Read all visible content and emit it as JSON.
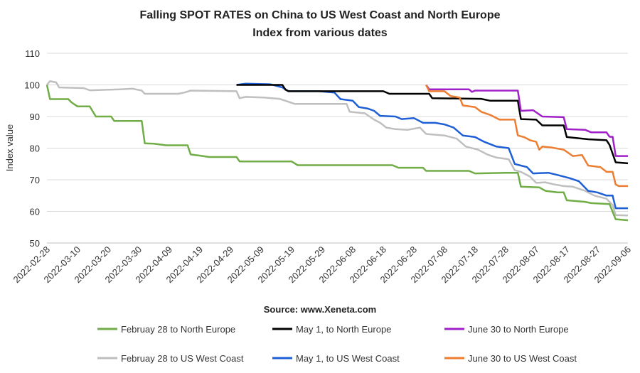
{
  "chart_data": {
    "type": "line",
    "title": "Falling SPOT RATES on China to US West Coast and North Europe",
    "subtitle": "Index from various dates",
    "ylabel": "Index value",
    "ylim": [
      50,
      110
    ],
    "yticks": [
      50,
      60,
      70,
      80,
      90,
      100,
      110
    ],
    "xlim": [
      "2022-02-28",
      "2022-09-06"
    ],
    "xticks": [
      "2022-02-28",
      "2022-03-10",
      "2022-03-20",
      "2022-03-30",
      "2022-04-09",
      "2022-04-19",
      "2022-04-29",
      "2022-05-09",
      "2022-05-19",
      "2022-05-29",
      "2022-06-08",
      "2022-06-18",
      "2022-06-28",
      "2022-07-08",
      "2022-07-18",
      "2022-07-28",
      "2022-08-07",
      "2022-08-17",
      "2022-08-27",
      "2022-09-06"
    ],
    "grid": "horizontal",
    "legend_position": "bottom",
    "source": "Source: www.Xeneta.com",
    "series": [
      {
        "name": "Februay 28 to US West Coast",
        "color": "#bfbfbf",
        "points": [
          [
            "2022-02-28",
            100
          ],
          [
            "2022-03-01",
            101.2
          ],
          [
            "2022-03-02",
            101
          ],
          [
            "2022-03-03",
            100.8
          ],
          [
            "2022-03-04",
            99.2
          ],
          [
            "2022-03-12",
            99
          ],
          [
            "2022-03-14",
            98.3
          ],
          [
            "2022-03-24",
            98.6
          ],
          [
            "2022-03-28",
            98.8
          ],
          [
            "2022-03-31",
            98.2
          ],
          [
            "2022-04-01",
            97.2
          ],
          [
            "2022-04-12",
            97.2
          ],
          [
            "2022-04-14",
            97.6
          ],
          [
            "2022-04-16",
            98.2
          ],
          [
            "2022-05-01",
            98
          ],
          [
            "2022-05-02",
            95.8
          ],
          [
            "2022-05-04",
            96.2
          ],
          [
            "2022-05-10",
            96
          ],
          [
            "2022-05-15",
            95.6
          ],
          [
            "2022-05-17",
            95
          ],
          [
            "2022-05-20",
            94
          ],
          [
            "2022-06-06",
            94
          ],
          [
            "2022-06-07",
            91.5
          ],
          [
            "2022-06-12",
            91
          ],
          [
            "2022-06-15",
            89
          ],
          [
            "2022-06-17",
            88
          ],
          [
            "2022-06-19",
            86.5
          ],
          [
            "2022-06-22",
            86
          ],
          [
            "2022-06-26",
            85.8
          ],
          [
            "2022-06-30",
            86.5
          ],
          [
            "2022-07-02",
            84.5
          ],
          [
            "2022-07-08",
            84
          ],
          [
            "2022-07-12",
            83
          ],
          [
            "2022-07-15",
            80.5
          ],
          [
            "2022-07-19",
            79.5
          ],
          [
            "2022-07-22",
            78
          ],
          [
            "2022-07-25",
            77
          ],
          [
            "2022-07-29",
            76.5
          ],
          [
            "2022-07-31",
            73
          ],
          [
            "2022-08-02",
            72.5
          ],
          [
            "2022-08-05",
            71
          ],
          [
            "2022-08-07",
            69
          ],
          [
            "2022-08-10",
            69.2
          ],
          [
            "2022-08-13",
            68.5
          ],
          [
            "2022-08-16",
            68
          ],
          [
            "2022-08-19",
            67.8
          ],
          [
            "2022-08-23",
            66.5
          ],
          [
            "2022-08-26",
            65
          ],
          [
            "2022-08-30",
            64
          ],
          [
            "2022-09-01",
            62
          ],
          [
            "2022-09-02",
            58.8
          ],
          [
            "2022-09-06",
            58.7
          ]
        ]
      },
      {
        "name": "May 1, to US West Coast",
        "color": "#1f5fd6",
        "points": [
          [
            "2022-05-01",
            100
          ],
          [
            "2022-05-04",
            100.4
          ],
          [
            "2022-05-12",
            100.2
          ],
          [
            "2022-05-16",
            99.2
          ],
          [
            "2022-05-18",
            98
          ],
          [
            "2022-05-28",
            98
          ],
          [
            "2022-06-02",
            97.6
          ],
          [
            "2022-06-04",
            95.5
          ],
          [
            "2022-06-08",
            95
          ],
          [
            "2022-06-10",
            93
          ],
          [
            "2022-06-13",
            92.5
          ],
          [
            "2022-06-15",
            91.8
          ],
          [
            "2022-06-17",
            90.2
          ],
          [
            "2022-06-22",
            90
          ],
          [
            "2022-06-24",
            89.2
          ],
          [
            "2022-06-28",
            89.5
          ],
          [
            "2022-07-01",
            88
          ],
          [
            "2022-07-05",
            88
          ],
          [
            "2022-07-08",
            87.5
          ],
          [
            "2022-07-11",
            86.5
          ],
          [
            "2022-07-14",
            84
          ],
          [
            "2022-07-18",
            83.5
          ],
          [
            "2022-07-21",
            82
          ],
          [
            "2022-07-25",
            80.5
          ],
          [
            "2022-07-29",
            80
          ],
          [
            "2022-07-31",
            75
          ],
          [
            "2022-08-02",
            74.5
          ],
          [
            "2022-08-04",
            74
          ],
          [
            "2022-08-06",
            72
          ],
          [
            "2022-08-11",
            72.2
          ],
          [
            "2022-08-14",
            71.5
          ],
          [
            "2022-08-18",
            70.5
          ],
          [
            "2022-08-21",
            69.5
          ],
          [
            "2022-08-24",
            66.5
          ],
          [
            "2022-08-27",
            66
          ],
          [
            "2022-08-30",
            65
          ],
          [
            "2022-09-01",
            65
          ],
          [
            "2022-09-02",
            61
          ],
          [
            "2022-09-06",
            61
          ]
        ]
      },
      {
        "name": "Februay 28 to North Europe",
        "color": "#70ad47",
        "points": [
          [
            "2022-02-28",
            100
          ],
          [
            "2022-03-01",
            95.5
          ],
          [
            "2022-03-07",
            95.5
          ],
          [
            "2022-03-08",
            94.5
          ],
          [
            "2022-03-10",
            93.2
          ],
          [
            "2022-03-14",
            93.2
          ],
          [
            "2022-03-16",
            90
          ],
          [
            "2022-03-21",
            90
          ],
          [
            "2022-03-22",
            88.6
          ],
          [
            "2022-03-31",
            88.6
          ],
          [
            "2022-04-01",
            81.5
          ],
          [
            "2022-04-04",
            81.4
          ],
          [
            "2022-04-08",
            80.9
          ],
          [
            "2022-04-15",
            80.9
          ],
          [
            "2022-04-16",
            78
          ],
          [
            "2022-04-20",
            77.5
          ],
          [
            "2022-04-22",
            77.2
          ],
          [
            "2022-05-01",
            77.2
          ],
          [
            "2022-05-02",
            75.8
          ],
          [
            "2022-05-19",
            75.8
          ],
          [
            "2022-05-21",
            74.6
          ],
          [
            "2022-06-21",
            74.6
          ],
          [
            "2022-06-23",
            73.8
          ],
          [
            "2022-07-01",
            73.8
          ],
          [
            "2022-07-02",
            72.8
          ],
          [
            "2022-07-16",
            72.8
          ],
          [
            "2022-07-18",
            72
          ],
          [
            "2022-07-28",
            72.2
          ],
          [
            "2022-08-01",
            72.2
          ],
          [
            "2022-08-02",
            67.8
          ],
          [
            "2022-08-08",
            67.6
          ],
          [
            "2022-08-10",
            66.5
          ],
          [
            "2022-08-14",
            66
          ],
          [
            "2022-08-16",
            66
          ],
          [
            "2022-08-17",
            63.5
          ],
          [
            "2022-08-23",
            63
          ],
          [
            "2022-08-25",
            62.6
          ],
          [
            "2022-08-31",
            62.3
          ],
          [
            "2022-09-02",
            57.5
          ],
          [
            "2022-09-06",
            57.2
          ]
        ]
      },
      {
        "name": "May 1, to North Europe",
        "color": "#000000",
        "points": [
          [
            "2022-05-01",
            100
          ],
          [
            "2022-05-16",
            100
          ],
          [
            "2022-05-17",
            98.5
          ],
          [
            "2022-05-18",
            98
          ],
          [
            "2022-06-18",
            98
          ],
          [
            "2022-06-20",
            97.2
          ],
          [
            "2022-07-03",
            97.2
          ],
          [
            "2022-07-04",
            95.8
          ],
          [
            "2022-07-20",
            95.6
          ],
          [
            "2022-07-23",
            95
          ],
          [
            "2022-08-01",
            95
          ],
          [
            "2022-08-02",
            89.2
          ],
          [
            "2022-08-07",
            89
          ],
          [
            "2022-08-09",
            87.2
          ],
          [
            "2022-08-16",
            87.2
          ],
          [
            "2022-08-17",
            83.5
          ],
          [
            "2022-08-24",
            82.8
          ],
          [
            "2022-08-30",
            82.5
          ],
          [
            "2022-08-31",
            81
          ],
          [
            "2022-09-02",
            75.5
          ],
          [
            "2022-09-06",
            75.2
          ]
        ]
      },
      {
        "name": "June 30 to North Europe",
        "color": "#a020c8",
        "points": [
          [
            "2022-07-02",
            100
          ],
          [
            "2022-07-03",
            98.6
          ],
          [
            "2022-07-16",
            98.6
          ],
          [
            "2022-07-17",
            97.8
          ],
          [
            "2022-07-18",
            98.2
          ],
          [
            "2022-08-01",
            98.2
          ],
          [
            "2022-08-02",
            91.8
          ],
          [
            "2022-08-06",
            92
          ],
          [
            "2022-08-09",
            90
          ],
          [
            "2022-08-16",
            89.8
          ],
          [
            "2022-08-17",
            86
          ],
          [
            "2022-08-23",
            85.8
          ],
          [
            "2022-08-25",
            85
          ],
          [
            "2022-08-30",
            85
          ],
          [
            "2022-08-31",
            83.6
          ],
          [
            "2022-09-01",
            83.6
          ],
          [
            "2022-09-02",
            77.5
          ],
          [
            "2022-09-06",
            77.5
          ]
        ]
      },
      {
        "name": "June 30 to US West Coast",
        "color": "#ed7d31",
        "points": [
          [
            "2022-07-02",
            100
          ],
          [
            "2022-07-03",
            98
          ],
          [
            "2022-07-08",
            98
          ],
          [
            "2022-07-10",
            96.5
          ],
          [
            "2022-07-13",
            96
          ],
          [
            "2022-07-14",
            93.5
          ],
          [
            "2022-07-18",
            93
          ],
          [
            "2022-07-20",
            91.5
          ],
          [
            "2022-07-23",
            90.5
          ],
          [
            "2022-07-26",
            89
          ],
          [
            "2022-07-31",
            89
          ],
          [
            "2022-08-01",
            84
          ],
          [
            "2022-08-03",
            83.5
          ],
          [
            "2022-08-05",
            82.5
          ],
          [
            "2022-08-07",
            82
          ],
          [
            "2022-08-08",
            79.5
          ],
          [
            "2022-08-09",
            80.5
          ],
          [
            "2022-08-12",
            80.2
          ],
          [
            "2022-08-16",
            79.5
          ],
          [
            "2022-08-19",
            77.5
          ],
          [
            "2022-08-22",
            77.8
          ],
          [
            "2022-08-24",
            74.5
          ],
          [
            "2022-08-28",
            74
          ],
          [
            "2022-08-30",
            72.5
          ],
          [
            "2022-09-01",
            72.5
          ],
          [
            "2022-09-02",
            68.5
          ],
          [
            "2022-09-03",
            68
          ],
          [
            "2022-09-06",
            68
          ]
        ]
      }
    ],
    "legend": [
      {
        "label": "Februay 28 to North Europe",
        "color": "#70ad47"
      },
      {
        "label": "May 1, to North Europe",
        "color": "#000000"
      },
      {
        "label": "June 30 to North Europe",
        "color": "#a020c8"
      },
      {
        "label": "Februay 28 to US West Coast",
        "color": "#bfbfbf"
      },
      {
        "label": "May 1, to US West Coast",
        "color": "#1f5fd6"
      },
      {
        "label": "June 30 to US West Coast",
        "color": "#ed7d31"
      }
    ]
  }
}
